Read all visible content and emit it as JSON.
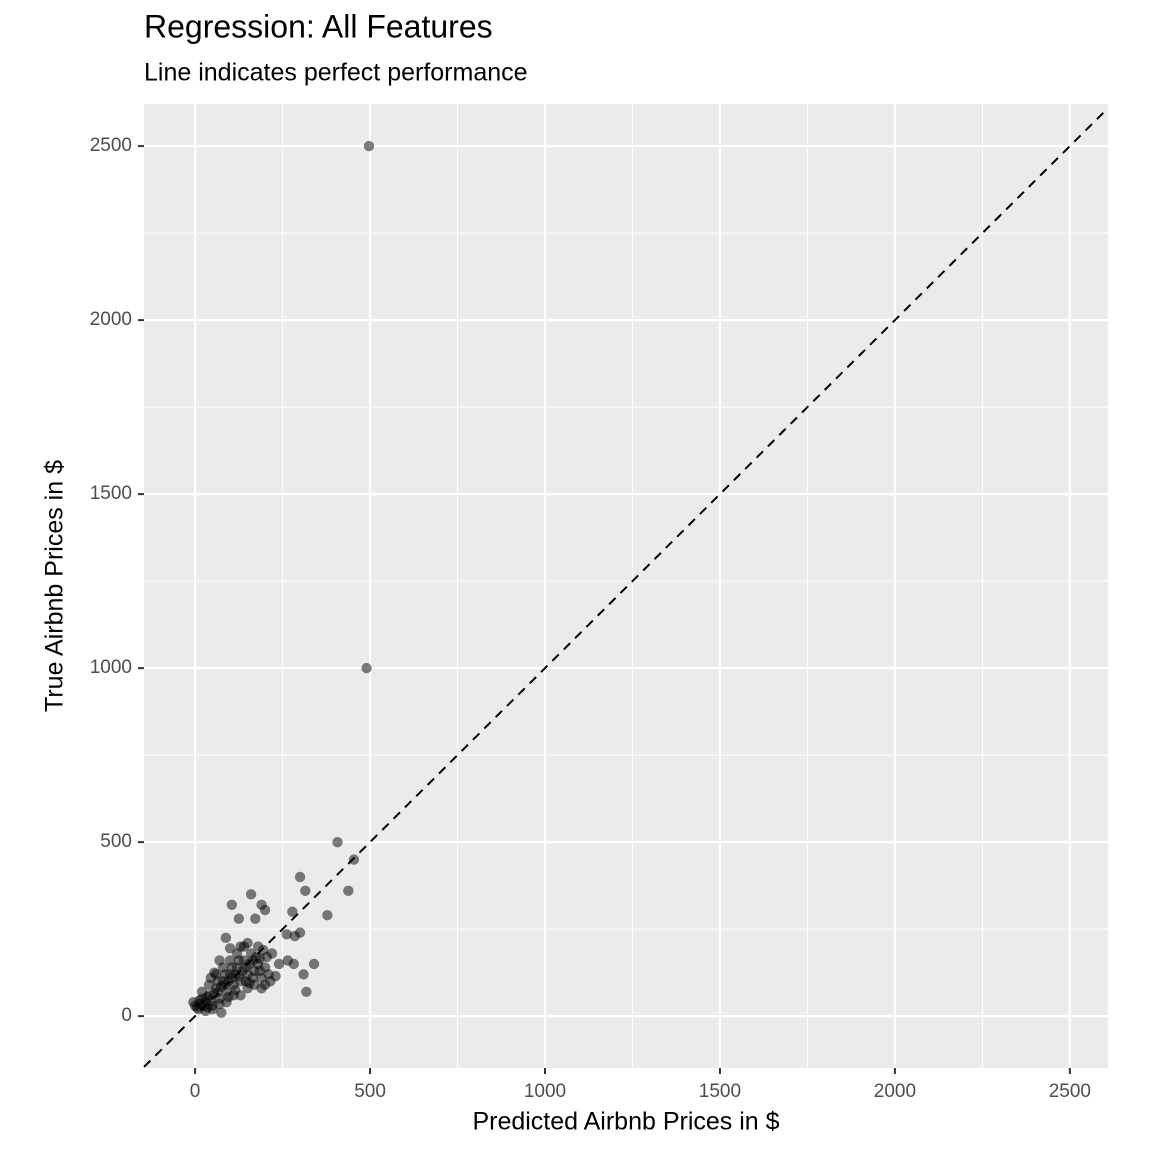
{
  "chart_data": {
    "type": "scatter",
    "title": "Regression: All Features",
    "subtitle": "Line indicates perfect performance",
    "x_label": "Predicted Airbnb Prices in $",
    "y_label": "True Airbnb Prices in $",
    "xlim": [
      -146,
      2609
    ],
    "ylim": [
      -149,
      2621
    ],
    "xticks": [
      0,
      500,
      1000,
      1500,
      2000,
      2500
    ],
    "yticks": [
      0,
      500,
      1000,
      1500,
      2000,
      2500
    ],
    "xminor": [
      250,
      750,
      1250,
      1750,
      2250
    ],
    "yminor": [
      250,
      750,
      1250,
      1750,
      2250
    ],
    "grid": true,
    "identity_line": true,
    "color": "#000000",
    "series": [
      {
        "x": [
          497,
          490,
          407,
          454,
          438,
          300,
          315,
          378,
          278,
          262,
          300,
          285,
          160,
          190,
          200,
          105,
          172,
          125,
          88,
          265,
          282,
          340,
          310,
          318,
          240,
          230,
          215,
          200,
          180,
          150,
          130,
          100,
          70,
          55,
          0,
          -5,
          10,
          20,
          30,
          40,
          50,
          60,
          70,
          80,
          90,
          100,
          110,
          120,
          130,
          140,
          150,
          160,
          170,
          180,
          190,
          200,
          60,
          40,
          20,
          30,
          50,
          75,
          90,
          110,
          130,
          150,
          170,
          190,
          210,
          220,
          100,
          80,
          120,
          140,
          25,
          35,
          45,
          55,
          65,
          75,
          85,
          95,
          105,
          115,
          125,
          135,
          145,
          155,
          165,
          175,
          185,
          15,
          5,
          45,
          65,
          85,
          105,
          125,
          145,
          165,
          185,
          205,
          195,
          155,
          115,
          95,
          70,
          35,
          12
        ],
        "values": [
          2500,
          1000,
          500,
          450,
          360,
          400,
          360,
          290,
          300,
          235,
          240,
          230,
          350,
          320,
          305,
          320,
          280,
          280,
          225,
          160,
          150,
          150,
          120,
          70,
          150,
          115,
          100,
          90,
          200,
          210,
          200,
          195,
          160,
          125,
          30,
          40,
          20,
          50,
          40,
          60,
          30,
          80,
          50,
          100,
          70,
          120,
          90,
          140,
          100,
          160,
          120,
          180,
          130,
          150,
          110,
          140,
          120,
          90,
          70,
          15,
          20,
          10,
          40,
          60,
          60,
          80,
          90,
          80,
          120,
          180,
          160,
          140,
          180,
          200,
          30,
          55,
          45,
          65,
          70,
          85,
          90,
          100,
          110,
          120,
          115,
          130,
          140,
          150,
          160,
          170,
          165,
          35,
          25,
          110,
          100,
          120,
          140,
          160,
          100,
          110,
          130,
          170,
          190,
          95,
          75,
          55,
          35,
          25,
          45
        ]
      }
    ]
  }
}
